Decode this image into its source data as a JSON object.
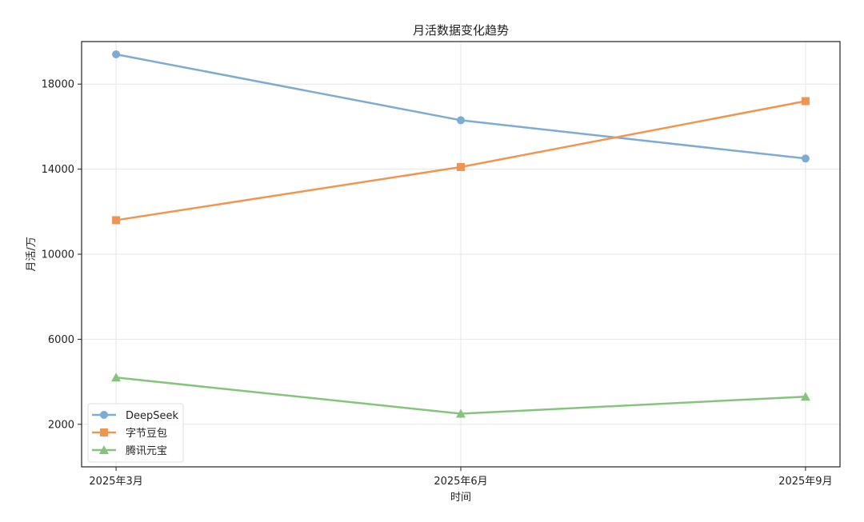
{
  "chart_data": {
    "type": "line",
    "title": "月活数据变化趋势",
    "xlabel": "时间",
    "ylabel": "月活/万",
    "categories": [
      "2025年3月",
      "2025年6月",
      "2025年9月"
    ],
    "ylim": [
      0,
      20000
    ],
    "yticks": [
      2000,
      6000,
      10000,
      14000,
      18000
    ],
    "grid": true,
    "legend_position": "lower-left",
    "series": [
      {
        "name": "DeepSeek",
        "values": [
          19400,
          16300,
          14500
        ],
        "color": "#7eabd1",
        "marker": "circle"
      },
      {
        "name": "字节豆包",
        "values": [
          11600,
          14100,
          17200
        ],
        "color": "#ef9550",
        "marker": "square"
      },
      {
        "name": "腾讯元宝",
        "values": [
          4200,
          2500,
          3300
        ],
        "color": "#86c47d",
        "marker": "triangle"
      }
    ]
  }
}
